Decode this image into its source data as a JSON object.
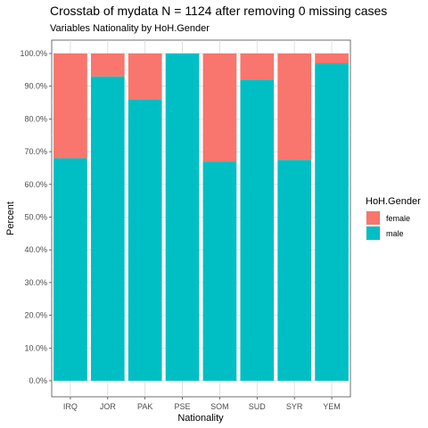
{
  "chart_data": {
    "type": "bar",
    "stacked": true,
    "title": "Crosstab of mydata N = 1124 after removing 0 missing cases",
    "subtitle": "Variables Nationality by HoH.Gender",
    "xlabel": "Nationality",
    "ylabel": "Percent",
    "ylim": [
      0,
      1
    ],
    "yticks": [
      0,
      0.1,
      0.2,
      0.3,
      0.4,
      0.5,
      0.6,
      0.7,
      0.8,
      0.9,
      1.0
    ],
    "ytick_labels": [
      "0.0%",
      "10.0%",
      "20.0%",
      "30.0%",
      "40.0%",
      "50.0%",
      "60.0%",
      "70.0%",
      "80.0%",
      "90.0%",
      "100.0%"
    ],
    "categories": [
      "IRQ",
      "JOR",
      "PAK",
      "PSE",
      "SOM",
      "SUD",
      "SYR",
      "YEM"
    ],
    "series": [
      {
        "name": "male",
        "color": "#00BFC4",
        "values": [
          0.68,
          0.93,
          0.86,
          1.0,
          0.67,
          0.92,
          0.675,
          0.97
        ]
      },
      {
        "name": "female",
        "color": "#F8766D",
        "values": [
          0.32,
          0.07,
          0.14,
          0.0,
          0.33,
          0.08,
          0.325,
          0.03
        ]
      }
    ],
    "legend": {
      "title": "HoH.Gender",
      "position": "right",
      "entries": [
        {
          "label": "female",
          "color": "#F8766D"
        },
        {
          "label": "male",
          "color": "#00BFC4"
        }
      ]
    },
    "grid": true,
    "panel_border": true
  }
}
